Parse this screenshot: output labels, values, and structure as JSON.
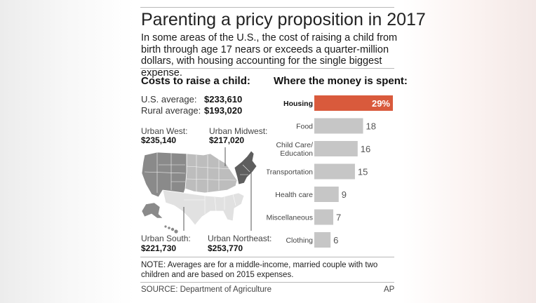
{
  "header": {
    "title": "Parenting a pricy proposition in 2017",
    "subtitle": "In some areas of the U.S., the cost of raising a child from birth through age 17 nears or exceeds a quarter-million dollars, with housing accounting for the single biggest expense."
  },
  "costs": {
    "heading": "Costs to raise a child:",
    "us_label": "U.S. average:",
    "us_value": "$233,610",
    "rural_label": "Rural average:",
    "rural_value": "$193,020"
  },
  "regions": {
    "west": {
      "label": "Urban West:",
      "value": "$235,140"
    },
    "midwest": {
      "label": "Urban Midwest:",
      "value": "$217,020"
    },
    "south": {
      "label": "Urban South:",
      "value": "$221,730"
    },
    "northeast": {
      "label": "Urban Northeast:",
      "value": "$253,770"
    }
  },
  "spending": {
    "heading": "Where the money is spent:"
  },
  "chart_data": {
    "type": "bar",
    "orientation": "horizontal",
    "title": "Where the money is spent:",
    "categories": [
      "Housing",
      "Food",
      "Child Care/\nEducation",
      "Transportation",
      "Health care",
      "Miscellaneous",
      "Clothing"
    ],
    "values": [
      29,
      18,
      16,
      15,
      9,
      7,
      6
    ],
    "value_labels": [
      "29%",
      "18",
      "16",
      "15",
      "9",
      "7",
      "6"
    ],
    "highlight_index": 0,
    "colors": {
      "highlight": "#d95a3c",
      "default": "#c6c6c6"
    },
    "xlim": [
      0,
      29
    ]
  },
  "footer": {
    "note_label": "NOTE:",
    "note": "Averages are for a middle-income, married couple with two children and are based on 2015 expenses.",
    "source": "SOURCE: Department of Agriculture",
    "credit": "AP"
  }
}
